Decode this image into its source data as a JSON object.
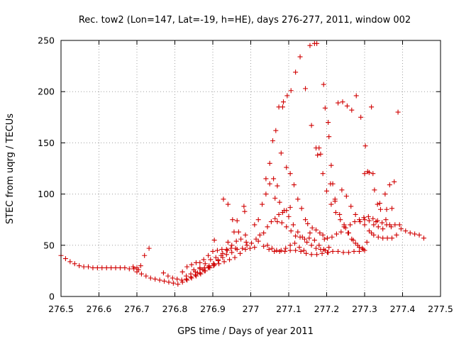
{
  "chart_data": {
    "type": "scatter",
    "title": "Rec. tow2 (Lon=147, Lat=-19, h=HE), days 276-277, 2011, window 002",
    "xlabel": "GPS time / Days of year 2011",
    "ylabel": "STEC from uqrg / TECUs",
    "xlim": [
      276.5,
      277.5
    ],
    "ylim": [
      0,
      250
    ],
    "xticks": [
      "276.5",
      "276.6",
      "276.7",
      "276.8",
      "276.9",
      "277",
      "277.1",
      "277.2",
      "277.3",
      "277.4",
      "277.5"
    ],
    "yticks": [
      "0",
      "50",
      "100",
      "150",
      "200",
      "250"
    ],
    "grid": true,
    "marker": "plus",
    "color": "#d00000",
    "points": [
      [
        276.5,
        40
      ],
      [
        276.512,
        37
      ],
      [
        276.524,
        34
      ],
      [
        276.536,
        32
      ],
      [
        276.548,
        30
      ],
      [
        276.56,
        29
      ],
      [
        276.572,
        29
      ],
      [
        276.584,
        28
      ],
      [
        276.596,
        28
      ],
      [
        276.608,
        28
      ],
      [
        276.62,
        28
      ],
      [
        276.632,
        28
      ],
      [
        276.644,
        28
      ],
      [
        276.656,
        28
      ],
      [
        276.668,
        28
      ],
      [
        276.68,
        27
      ],
      [
        276.692,
        27
      ],
      [
        276.704,
        26
      ],
      [
        276.69,
        29
      ],
      [
        276.7,
        28
      ],
      [
        276.71,
        30
      ],
      [
        276.72,
        40
      ],
      [
        276.732,
        47
      ],
      [
        276.7,
        24
      ],
      [
        276.712,
        22
      ],
      [
        276.724,
        20
      ],
      [
        276.736,
        18
      ],
      [
        276.748,
        17
      ],
      [
        276.76,
        16
      ],
      [
        276.772,
        15
      ],
      [
        276.784,
        14
      ],
      [
        276.796,
        13
      ],
      [
        276.808,
        12
      ],
      [
        276.82,
        14
      ],
      [
        276.832,
        16
      ],
      [
        276.844,
        18
      ],
      [
        276.856,
        20
      ],
      [
        276.868,
        22
      ],
      [
        276.88,
        25
      ],
      [
        276.892,
        28
      ],
      [
        276.904,
        31
      ],
      [
        276.77,
        23
      ],
      [
        276.782,
        20
      ],
      [
        276.794,
        18
      ],
      [
        276.806,
        17
      ],
      [
        276.818,
        16
      ],
      [
        276.83,
        17
      ],
      [
        276.842,
        19
      ],
      [
        276.854,
        21
      ],
      [
        276.866,
        23
      ],
      [
        276.878,
        25
      ],
      [
        276.89,
        29
      ],
      [
        276.902,
        32
      ],
      [
        276.914,
        35
      ],
      [
        276.926,
        38
      ],
      [
        276.82,
        24
      ],
      [
        276.832,
        29
      ],
      [
        276.844,
        31
      ],
      [
        276.856,
        33
      ],
      [
        276.866,
        33
      ],
      [
        276.876,
        36
      ],
      [
        276.888,
        40
      ],
      [
        276.9,
        44
      ],
      [
        276.912,
        45
      ],
      [
        276.924,
        46
      ],
      [
        276.936,
        46
      ],
      [
        276.948,
        47
      ],
      [
        276.96,
        47
      ],
      [
        276.83,
        20
      ],
      [
        276.842,
        22
      ],
      [
        276.854,
        24
      ],
      [
        276.866,
        27
      ],
      [
        276.878,
        28
      ],
      [
        276.89,
        30
      ],
      [
        276.902,
        32
      ],
      [
        276.914,
        36
      ],
      [
        276.926,
        42
      ],
      [
        276.938,
        45
      ],
      [
        276.95,
        50
      ],
      [
        276.962,
        54
      ],
      [
        276.974,
        56
      ],
      [
        276.85,
        26
      ],
      [
        276.866,
        28
      ],
      [
        276.88,
        32
      ],
      [
        276.894,
        36
      ],
      [
        276.908,
        38
      ],
      [
        276.922,
        40
      ],
      [
        276.936,
        41
      ],
      [
        276.95,
        43
      ],
      [
        276.964,
        46
      ],
      [
        276.978,
        47
      ],
      [
        276.99,
        50
      ],
      [
        277.002,
        52
      ],
      [
        276.86,
        23
      ],
      [
        276.874,
        26
      ],
      [
        276.888,
        28
      ],
      [
        276.902,
        30
      ],
      [
        276.916,
        32
      ],
      [
        276.93,
        34
      ],
      [
        276.944,
        36
      ],
      [
        276.958,
        38
      ],
      [
        276.972,
        42
      ],
      [
        276.986,
        46
      ],
      [
        276.998,
        47
      ],
      [
        277.01,
        48
      ],
      [
        276.904,
        55
      ],
      [
        276.928,
        95
      ],
      [
        276.94,
        90
      ],
      [
        276.952,
        75
      ],
      [
        276.964,
        74
      ],
      [
        276.956,
        63
      ],
      [
        276.968,
        63
      ],
      [
        276.94,
        53
      ],
      [
        276.982,
        88
      ],
      [
        276.984,
        83
      ],
      [
        276.986,
        60
      ],
      [
        276.988,
        53
      ],
      [
        277.014,
        56
      ],
      [
        277.024,
        60
      ],
      [
        277.034,
        62
      ],
      [
        277.044,
        68
      ],
      [
        277.054,
        73
      ],
      [
        277.064,
        76
      ],
      [
        277.074,
        80
      ],
      [
        277.084,
        82
      ],
      [
        277.094,
        84
      ],
      [
        277.104,
        87
      ],
      [
        277.01,
        70
      ],
      [
        277.02,
        75
      ],
      [
        277.03,
        90
      ],
      [
        277.04,
        100
      ],
      [
        277.05,
        110
      ],
      [
        277.06,
        115
      ],
      [
        277.07,
        108
      ],
      [
        277.04,
        115
      ],
      [
        277.05,
        130
      ],
      [
        277.058,
        152
      ],
      [
        277.066,
        162
      ],
      [
        277.074,
        185
      ],
      [
        277.084,
        185
      ],
      [
        277.086,
        190
      ],
      [
        277.096,
        196
      ],
      [
        277.106,
        201
      ],
      [
        277.118,
        219
      ],
      [
        277.13,
        234
      ],
      [
        277.144,
        203
      ],
      [
        277.156,
        245
      ],
      [
        277.168,
        247
      ],
      [
        277.174,
        247
      ],
      [
        277.044,
        50
      ],
      [
        277.056,
        47
      ],
      [
        277.068,
        45
      ],
      [
        277.08,
        45
      ],
      [
        277.092,
        47
      ],
      [
        277.104,
        50
      ],
      [
        277.116,
        52
      ],
      [
        277.128,
        48
      ],
      [
        277.14,
        45
      ],
      [
        277.02,
        54
      ],
      [
        277.034,
        49
      ],
      [
        277.048,
        46
      ],
      [
        277.062,
        44
      ],
      [
        277.076,
        44
      ],
      [
        277.09,
        44
      ],
      [
        277.104,
        45
      ],
      [
        277.118,
        45
      ],
      [
        277.132,
        44
      ],
      [
        277.146,
        42
      ],
      [
        277.16,
        41
      ],
      [
        277.174,
        41
      ],
      [
        277.188,
        42
      ],
      [
        277.202,
        43
      ],
      [
        277.216,
        44
      ],
      [
        277.23,
        44
      ],
      [
        277.244,
        43
      ],
      [
        277.258,
        43
      ],
      [
        277.272,
        44
      ],
      [
        277.286,
        44
      ],
      [
        277.3,
        45
      ],
      [
        277.08,
        140
      ],
      [
        277.094,
        126
      ],
      [
        277.104,
        120
      ],
      [
        277.114,
        109
      ],
      [
        277.124,
        95
      ],
      [
        277.134,
        86
      ],
      [
        277.144,
        75
      ],
      [
        277.156,
        62
      ],
      [
        277.168,
        55
      ],
      [
        277.18,
        50
      ],
      [
        277.192,
        46
      ],
      [
        277.204,
        43
      ],
      [
        277.064,
        96
      ],
      [
        277.076,
        92
      ],
      [
        277.088,
        84
      ],
      [
        277.1,
        78
      ],
      [
        277.112,
        70
      ],
      [
        277.124,
        63
      ],
      [
        277.136,
        58
      ],
      [
        277.148,
        53
      ],
      [
        277.16,
        50
      ],
      [
        277.172,
        47
      ],
      [
        277.184,
        46
      ],
      [
        277.196,
        45
      ],
      [
        277.07,
        73
      ],
      [
        277.082,
        72
      ],
      [
        277.094,
        68
      ],
      [
        277.106,
        64
      ],
      [
        277.118,
        59
      ],
      [
        277.13,
        58
      ],
      [
        277.142,
        56
      ],
      [
        277.154,
        57
      ],
      [
        277.15,
        71
      ],
      [
        277.162,
        67
      ],
      [
        277.172,
        65
      ],
      [
        277.182,
        62
      ],
      [
        277.194,
        56
      ],
      [
        277.206,
        48
      ],
      [
        277.16,
        167
      ],
      [
        277.172,
        145
      ],
      [
        277.176,
        138
      ],
      [
        277.184,
        139
      ],
      [
        277.192,
        207
      ],
      [
        277.196,
        184
      ],
      [
        277.204,
        170
      ],
      [
        277.206,
        156
      ],
      [
        277.212,
        128
      ],
      [
        277.216,
        110
      ],
      [
        277.222,
        93
      ],
      [
        277.23,
        189
      ],
      [
        277.242,
        190
      ],
      [
        277.254,
        186
      ],
      [
        277.266,
        182
      ],
      [
        277.278,
        196
      ],
      [
        277.29,
        175
      ],
      [
        277.302,
        147
      ],
      [
        277.308,
        122
      ],
      [
        277.318,
        185
      ],
      [
        277.326,
        104
      ],
      [
        277.334,
        90
      ],
      [
        277.18,
        145
      ],
      [
        277.19,
        120
      ],
      [
        277.2,
        103
      ],
      [
        277.212,
        90
      ],
      [
        277.224,
        82
      ],
      [
        277.236,
        75
      ],
      [
        277.246,
        68
      ],
      [
        277.256,
        62
      ],
      [
        277.266,
        56
      ],
      [
        277.276,
        52
      ],
      [
        277.286,
        48
      ],
      [
        277.296,
        46
      ],
      [
        277.19,
        60
      ],
      [
        277.202,
        57
      ],
      [
        277.214,
        58
      ],
      [
        277.226,
        61
      ],
      [
        277.238,
        63
      ],
      [
        277.25,
        67
      ],
      [
        277.262,
        70
      ],
      [
        277.274,
        73
      ],
      [
        277.286,
        75
      ],
      [
        277.298,
        77
      ],
      [
        277.31,
        78
      ],
      [
        277.322,
        76
      ],
      [
        277.334,
        74
      ],
      [
        277.346,
        72
      ],
      [
        277.358,
        70
      ],
      [
        277.37,
        68
      ],
      [
        277.21,
        110
      ],
      [
        277.222,
        95
      ],
      [
        277.234,
        80
      ],
      [
        277.246,
        70
      ],
      [
        277.258,
        62
      ],
      [
        277.27,
        55
      ],
      [
        277.282,
        50
      ],
      [
        277.294,
        47
      ],
      [
        277.306,
        53
      ],
      [
        277.318,
        62
      ],
      [
        277.33,
        73
      ],
      [
        277.342,
        85
      ],
      [
        277.354,
        100
      ],
      [
        277.366,
        109
      ],
      [
        277.378,
        112
      ],
      [
        277.24,
        104
      ],
      [
        277.252,
        98
      ],
      [
        277.264,
        88
      ],
      [
        277.276,
        80
      ],
      [
        277.288,
        73
      ],
      [
        277.3,
        70
      ],
      [
        277.312,
        64
      ],
      [
        277.324,
        60
      ],
      [
        277.336,
        58
      ],
      [
        277.348,
        57
      ],
      [
        277.36,
        57
      ],
      [
        277.372,
        57
      ],
      [
        277.384,
        60
      ],
      [
        277.396,
        66
      ],
      [
        277.408,
        64
      ],
      [
        277.42,
        62
      ],
      [
        277.432,
        61
      ],
      [
        277.444,
        60
      ],
      [
        277.456,
        57
      ],
      [
        277.3,
        120
      ],
      [
        277.312,
        121
      ],
      [
        277.322,
        120
      ],
      [
        277.34,
        91
      ],
      [
        277.358,
        85
      ],
      [
        277.372,
        86
      ],
      [
        277.388,
        180
      ],
      [
        277.3,
        75
      ],
      [
        277.312,
        74
      ],
      [
        277.324,
        70
      ],
      [
        277.336,
        68
      ],
      [
        277.348,
        66
      ],
      [
        277.356,
        75
      ],
      [
        277.366,
        70
      ],
      [
        277.38,
        70
      ],
      [
        277.392,
        70
      ]
    ]
  }
}
